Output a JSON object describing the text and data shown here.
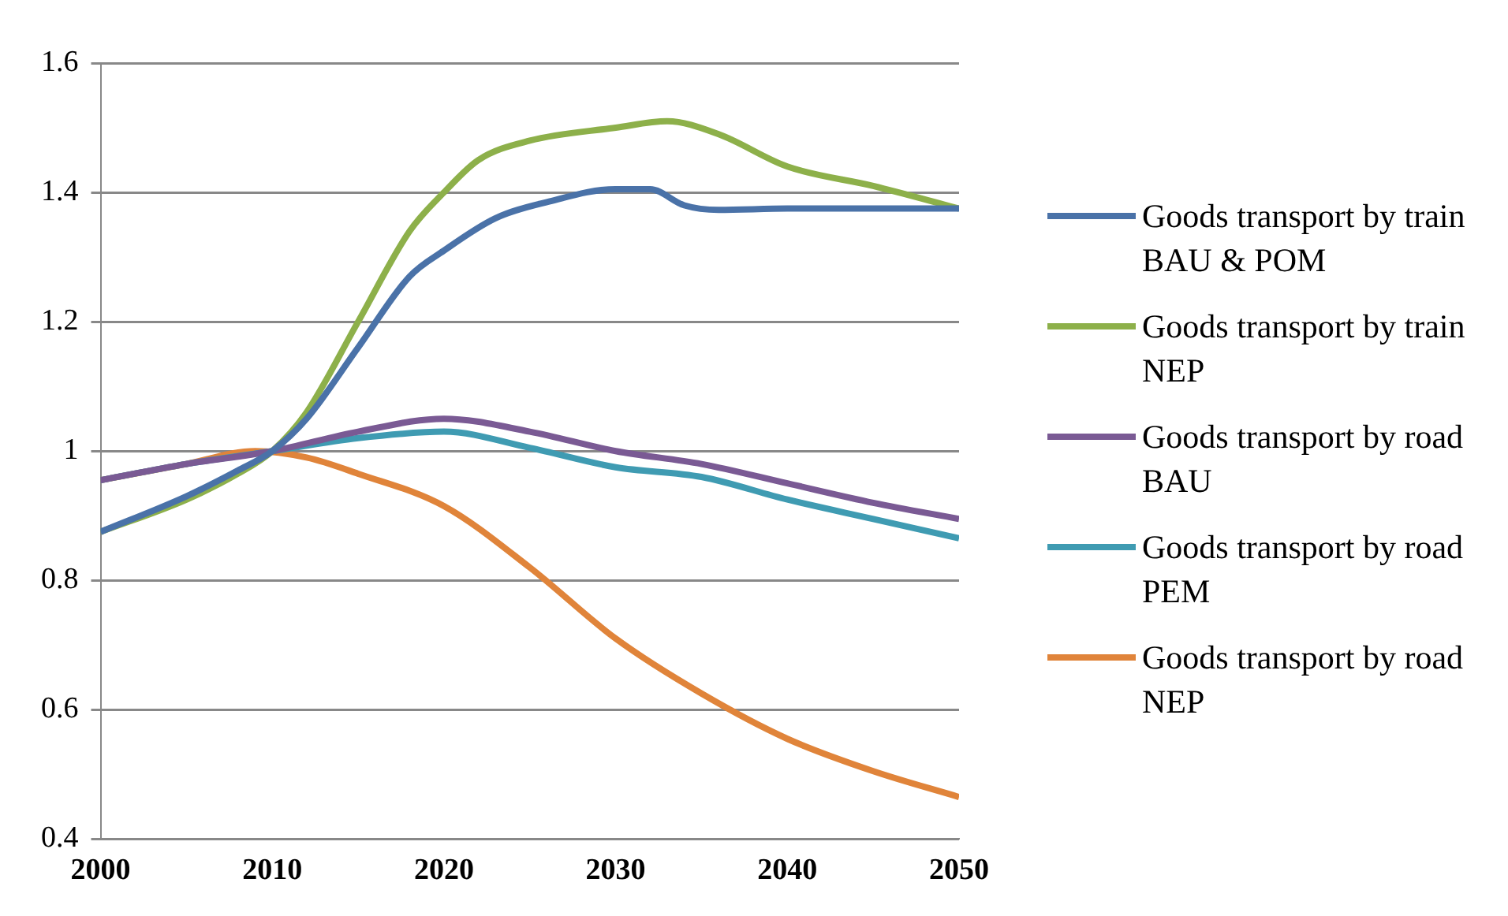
{
  "chart_data": {
    "type": "line",
    "series": [
      {
        "name": "Goods transport by train BAU & POM",
        "color": "#4a72a8",
        "x": [
          2000,
          2005,
          2008,
          2010,
          2012,
          2015,
          2018,
          2020,
          2023,
          2026,
          2030,
          2032,
          2034,
          2036,
          2040,
          2045,
          2050
        ],
        "values": [
          0.875,
          0.93,
          0.97,
          1.0,
          1.05,
          1.16,
          1.27,
          1.31,
          1.36,
          1.385,
          1.405,
          1.405,
          1.38,
          1.373,
          1.375,
          1.375,
          1.375
        ]
      },
      {
        "name": "Goods transport by train NEP",
        "color": "#8db04a",
        "x": [
          2000,
          2005,
          2008,
          2010,
          2012,
          2015,
          2018,
          2020,
          2022,
          2025,
          2030,
          2033,
          2036,
          2040,
          2045,
          2050
        ],
        "values": [
          0.875,
          0.925,
          0.965,
          1.0,
          1.06,
          1.2,
          1.34,
          1.4,
          1.45,
          1.48,
          1.5,
          1.51,
          1.49,
          1.44,
          1.41,
          1.375
        ]
      },
      {
        "name": "Goods transport by road BAU",
        "color": "#7a5a94",
        "x": [
          2000,
          2005,
          2010,
          2015,
          2020,
          2025,
          2030,
          2035,
          2040,
          2045,
          2050
        ],
        "values": [
          0.955,
          0.98,
          1.0,
          1.03,
          1.05,
          1.03,
          1.0,
          0.98,
          0.95,
          0.92,
          0.895
        ]
      },
      {
        "name": "Goods transport by road PEM",
        "color": "#3f9bb2",
        "x": [
          2000,
          2005,
          2010,
          2015,
          2020,
          2025,
          2030,
          2035,
          2040,
          2045,
          2050
        ],
        "values": [
          0.955,
          0.98,
          1.0,
          1.02,
          1.03,
          1.005,
          0.975,
          0.96,
          0.925,
          0.895,
          0.865
        ]
      },
      {
        "name": "Goods transport by road NEP",
        "color": "#e0843a",
        "x": [
          2000,
          2005,
          2009,
          2012,
          2015,
          2020,
          2025,
          2030,
          2035,
          2040,
          2045,
          2050
        ],
        "values": [
          0.955,
          0.98,
          1.0,
          0.99,
          0.965,
          0.915,
          0.82,
          0.71,
          0.625,
          0.555,
          0.505,
          0.465
        ]
      }
    ],
    "xlim": [
      2000,
      2050
    ],
    "xticks": [
      2000,
      2010,
      2020,
      2030,
      2040,
      2050
    ],
    "ylim": [
      0.4,
      1.6
    ],
    "yticks": [
      0.4,
      0.6,
      0.8,
      1,
      1.2,
      1.4,
      1.6
    ],
    "grid": "y",
    "legend": "right",
    "marker": "none",
    "line_style": "solid"
  }
}
